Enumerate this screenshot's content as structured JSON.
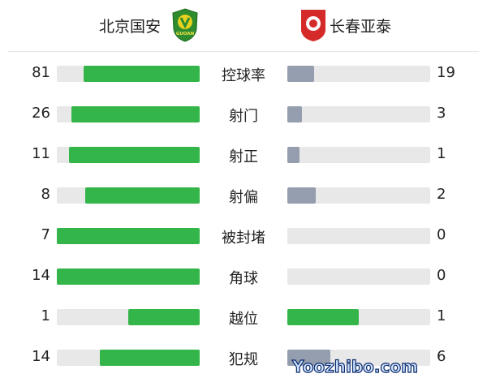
{
  "home": {
    "name": "北京国安",
    "badge_text": "GUOAN"
  },
  "away": {
    "name": "长春亚泰"
  },
  "colors": {
    "home_bar": "#34b549",
    "away_bar": "#959eae",
    "track": "#e8e8e8"
  },
  "stats": [
    {
      "label": "控球率",
      "home": 81,
      "away": 19
    },
    {
      "label": "射门",
      "home": 26,
      "away": 3
    },
    {
      "label": "射正",
      "home": 11,
      "away": 1
    },
    {
      "label": "射偏",
      "home": 8,
      "away": 2
    },
    {
      "label": "被封堵",
      "home": 7,
      "away": 0
    },
    {
      "label": "角球",
      "home": 14,
      "away": 0
    },
    {
      "label": "越位",
      "home": 1,
      "away": 1
    },
    {
      "label": "犯规",
      "home": 14,
      "away": 6
    }
  ],
  "watermark": "Yoozhibo.com"
}
